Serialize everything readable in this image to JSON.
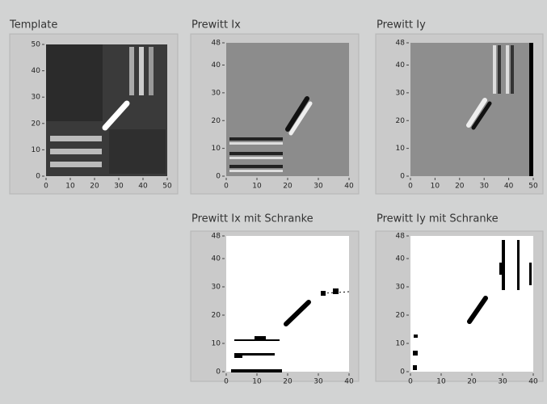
{
  "panels": [
    {
      "title": "Template",
      "xlim": [
        0,
        50
      ],
      "ylim": [
        0,
        50
      ],
      "xticks": [
        0,
        10,
        20,
        30,
        40,
        50
      ],
      "yticks": [
        0,
        10,
        20,
        30,
        40,
        50
      ]
    },
    {
      "title": "Prewitt Ix",
      "xlim": [
        0,
        40
      ],
      "ylim": [
        0,
        48
      ],
      "xticks": [
        0,
        10,
        20,
        30,
        40
      ],
      "yticks": [
        0,
        10,
        20,
        30,
        40,
        48
      ]
    },
    {
      "title": "Prewitt Iy",
      "xlim": [
        0,
        50
      ],
      "ylim": [
        0,
        48
      ],
      "xticks": [
        0,
        10,
        20,
        30,
        40,
        50
      ],
      "yticks": [
        0,
        10,
        20,
        30,
        40,
        48
      ]
    },
    {
      "title": "Prewitt Ix mit Schranke",
      "xlim": [
        0,
        40
      ],
      "ylim": [
        0,
        48
      ],
      "xticks": [
        0,
        10,
        20,
        30,
        40
      ],
      "yticks": [
        0,
        10,
        20,
        30,
        40,
        48
      ]
    },
    {
      "title": "Prewitt Iy mit Schranke",
      "xlim": [
        0,
        40
      ],
      "ylim": [
        0,
        48
      ],
      "xticks": [
        0,
        10,
        20,
        30,
        40
      ],
      "yticks": [
        0,
        10,
        20,
        30,
        40,
        48
      ]
    }
  ]
}
